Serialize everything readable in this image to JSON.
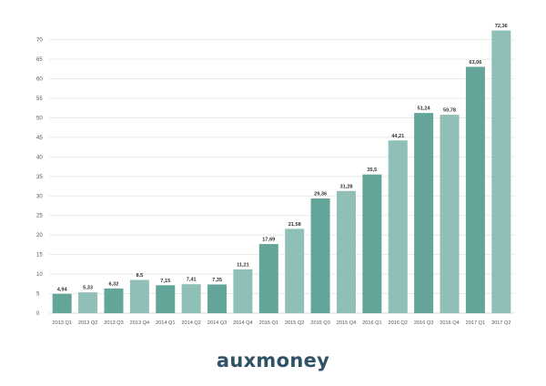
{
  "brand": {
    "logo_text": "auxmoney",
    "color": "#2f5266"
  },
  "chart_data": {
    "type": "bar",
    "title": "",
    "xlabel": "",
    "ylabel": "",
    "ylim": [
      0,
      75
    ],
    "yticks": [
      0,
      5,
      10,
      15,
      20,
      25,
      30,
      35,
      40,
      45,
      50,
      55,
      60,
      65,
      70
    ],
    "grid": true,
    "categories": [
      "2013 Q1",
      "2013 Q2",
      "2013 Q3",
      "2013 Q4",
      "2014 Q1",
      "2014 Q2",
      "2014 Q3",
      "2014 Q4",
      "2015 Q1",
      "2015 Q2",
      "2015 Q3",
      "2015 Q4",
      "2016 Q1",
      "2016 Q2",
      "2016 Q3",
      "2016 Q4",
      "2017 Q1",
      "2017 Q2"
    ],
    "values": [
      4.94,
      5.33,
      6.32,
      8.5,
      7.15,
      7.41,
      7.35,
      11.21,
      17.69,
      21.58,
      29.36,
      31.28,
      35.5,
      44.21,
      51.24,
      50.78,
      63.06,
      72.36
    ],
    "value_labels": [
      "4,94",
      "5,33",
      "6,32",
      "8,5",
      "7,15",
      "7,41",
      "7,35",
      "11,21",
      "17,69",
      "21,58",
      "29,36",
      "31,28",
      "35,5",
      "44,21",
      "51,24",
      "50,78",
      "63,06",
      "72,36"
    ],
    "colors": {
      "dark": "#63a699",
      "light": "#8fbfb6"
    }
  }
}
